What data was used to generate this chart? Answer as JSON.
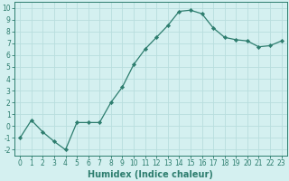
{
  "x": [
    0,
    1,
    2,
    3,
    4,
    5,
    6,
    7,
    8,
    9,
    10,
    11,
    12,
    13,
    14,
    15,
    16,
    17,
    18,
    19,
    20,
    21,
    22,
    23
  ],
  "y": [
    -1,
    0.5,
    -0.5,
    -1.3,
    -2,
    0.3,
    0.3,
    0.3,
    2.0,
    3.3,
    5.2,
    6.5,
    7.5,
    8.5,
    9.7,
    9.8,
    9.5,
    8.3,
    7.5,
    7.3,
    7.2,
    6.7,
    6.8,
    7.2
  ],
  "line_color": "#2d7d6e",
  "marker": "D",
  "marker_size": 2.2,
  "bg_color": "#d4f0f0",
  "grid_color": "#b8dede",
  "xlabel": "Humidex (Indice chaleur)",
  "xlim": [
    -0.5,
    23.5
  ],
  "ylim": [
    -2.5,
    10.5
  ],
  "yticks": [
    -2,
    -1,
    0,
    1,
    2,
    3,
    4,
    5,
    6,
    7,
    8,
    9,
    10
  ],
  "xticks": [
    0,
    1,
    2,
    3,
    4,
    5,
    6,
    7,
    8,
    9,
    10,
    11,
    12,
    13,
    14,
    15,
    16,
    17,
    18,
    19,
    20,
    21,
    22,
    23
  ],
  "tick_label_fontsize": 5.5,
  "xlabel_fontsize": 7.0,
  "tick_color": "#2d7d6e",
  "spine_color": "#2d7d6e",
  "linewidth": 0.9
}
